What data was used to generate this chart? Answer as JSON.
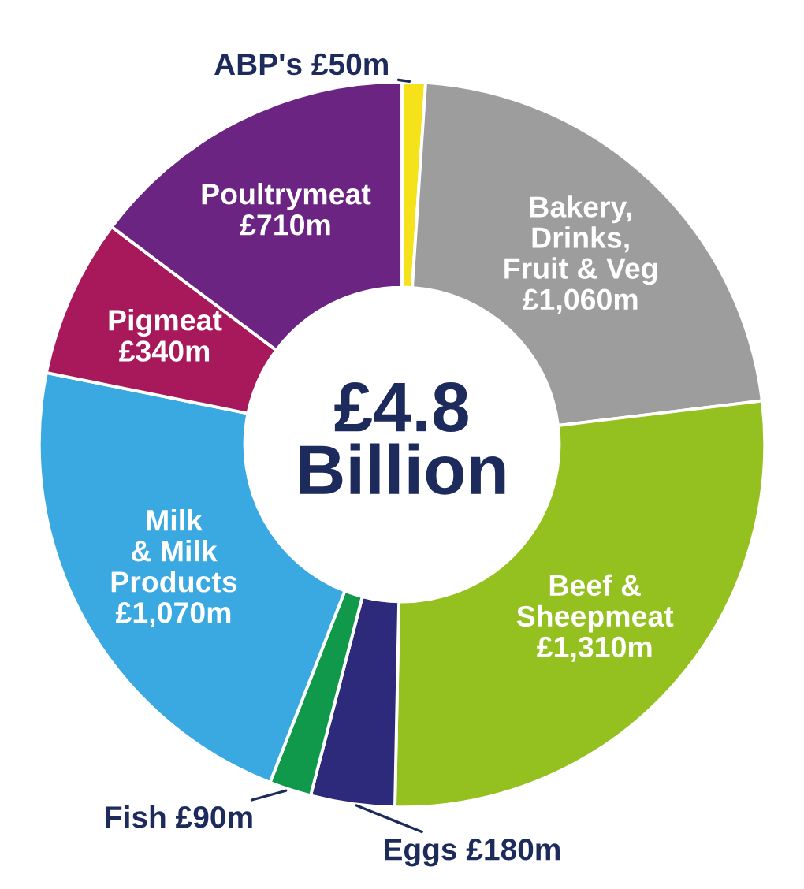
{
  "chart_data": {
    "type": "donut",
    "categories": [
      "ABP's",
      "Bakery,\nDrinks,\nFruit & Veg",
      "Beef &\nSheepmeat",
      "Eggs",
      "Fish",
      "Milk\n& Milk\nProducts",
      "Pigmeat",
      "Poultrymeat"
    ],
    "values": [
      50,
      1060,
      1310,
      180,
      90,
      1070,
      340,
      710
    ],
    "value_labels": [
      "£50m",
      "£1,060m",
      "£1,310m",
      "£180m",
      "£90m",
      "£1,070m",
      "£340m",
      "£710m"
    ],
    "colors": [
      "#f5e21b",
      "#9d9d9d",
      "#94c11f",
      "#2d2a7c",
      "#10994a",
      "#3aa8e1",
      "#a8195b",
      "#6b2482"
    ],
    "annotations": [
      "£4.8\nBillion"
    ]
  }
}
